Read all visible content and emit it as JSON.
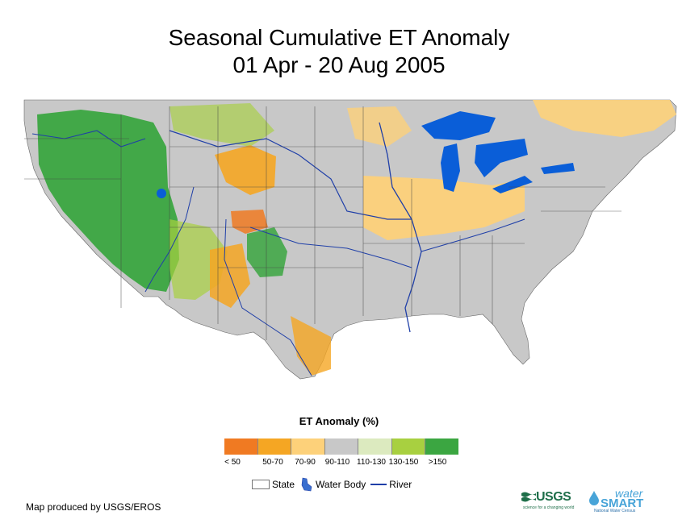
{
  "title": {
    "line1": "Seasonal Cumulative ET Anomaly",
    "line2": "01 Apr - 20 Aug 2005"
  },
  "legend": {
    "title": "ET Anomaly (%)",
    "classes": [
      {
        "label": "< 50",
        "color": "#f07a22"
      },
      {
        "label": "50-70",
        "color": "#f5a623"
      },
      {
        "label": "70-90",
        "color": "#fdd17a"
      },
      {
        "label": "90-110",
        "color": "#c8c8c8"
      },
      {
        "label": "110-130",
        "color": "#dceabf"
      },
      {
        "label": "130-150",
        "color": "#a8d040"
      },
      {
        "label": ">150",
        "color": "#3ba641"
      }
    ],
    "symbols": {
      "state": "State",
      "water_body": "Water Body",
      "river": "River"
    }
  },
  "map": {
    "region": "Contiguous United States",
    "colors": {
      "background_land": "#c8c8c8",
      "water": "#0a5ed8",
      "river": "#1f3fa8",
      "border": "#333333"
    }
  },
  "footer": {
    "credit": "Map produced by USGS/EROS",
    "usgs_logo_text": "USGS",
    "usgs_tagline": "science for a changing world",
    "watersmart_top": "water",
    "watersmart_main": "SMART",
    "watersmart_sub": "National Water Census"
  }
}
